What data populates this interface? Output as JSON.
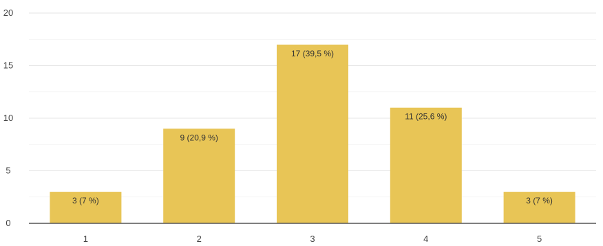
{
  "chart_data": {
    "type": "bar",
    "categories": [
      "1",
      "2",
      "3",
      "4",
      "5"
    ],
    "values": [
      3,
      9,
      17,
      11,
      3
    ],
    "data_labels": [
      "3 (7 %)",
      "9 (20,9 %)",
      "17 (39,5 %)",
      "11 (25,6 %)",
      "3 (7 %)"
    ],
    "y_ticks": [
      "0",
      "5",
      "10",
      "15",
      "20"
    ],
    "ylim": [
      0,
      20
    ],
    "grid": true,
    "legend": "none",
    "colors": {
      "bar": "#e8c556",
      "grid": "#e6e6e6",
      "axis": "#555555"
    }
  }
}
